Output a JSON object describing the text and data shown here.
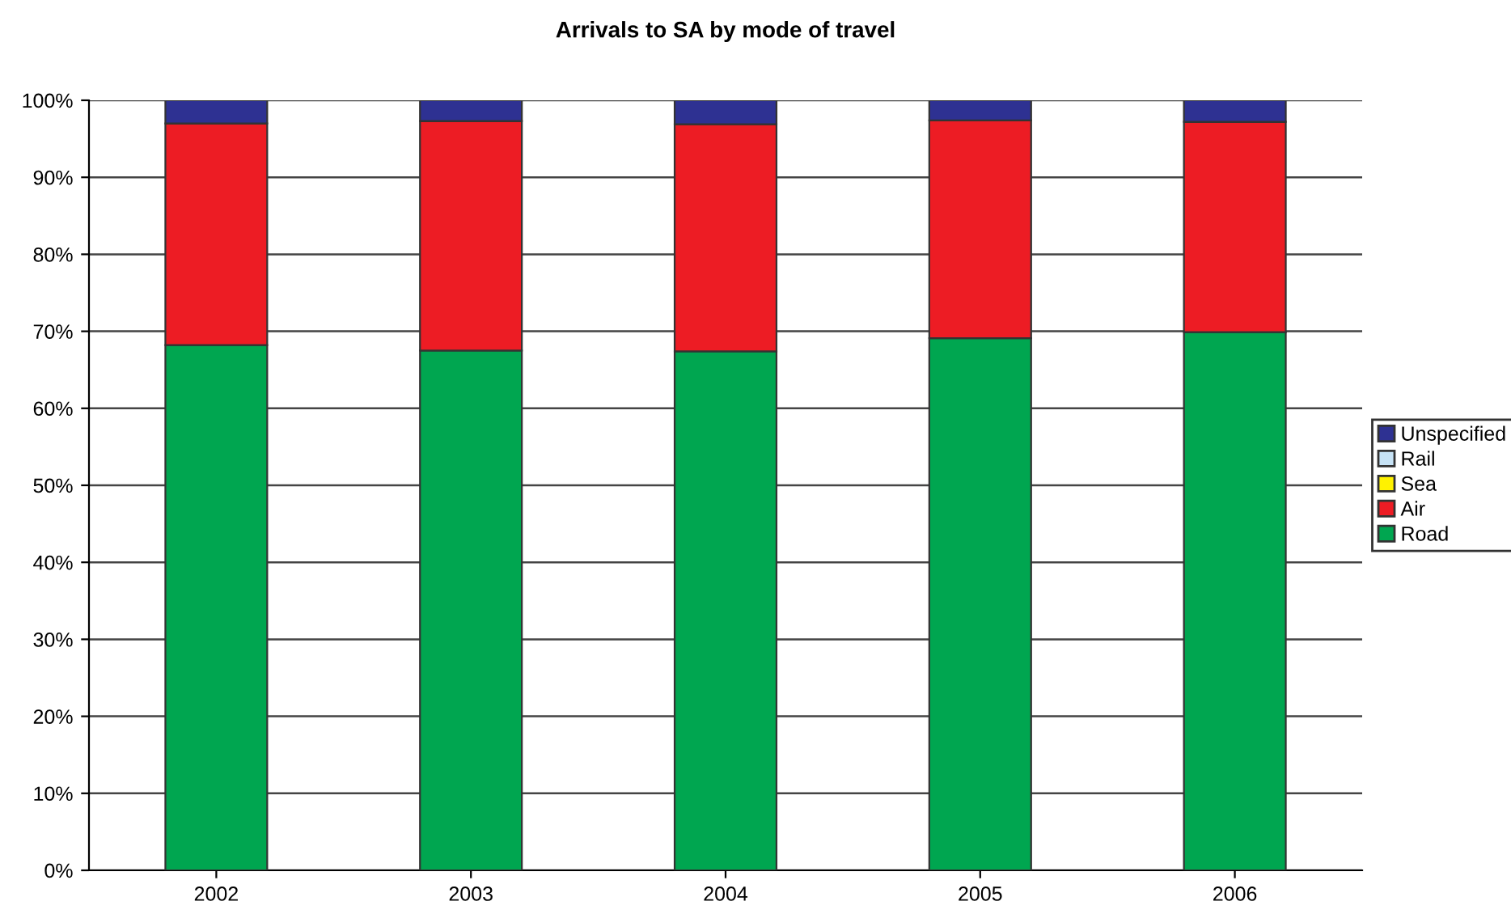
{
  "chart_data": {
    "type": "bar",
    "stacked": true,
    "title": "Arrivals to SA by mode of travel",
    "categories": [
      "2002",
      "2003",
      "2004",
      "2005",
      "2006"
    ],
    "series": [
      {
        "name": "Road",
        "color": "#00a650",
        "values": [
          68.2,
          67.5,
          67.4,
          69.1,
          69.9
        ]
      },
      {
        "name": "Air",
        "color": "#ed1c24",
        "values": [
          28.8,
          29.8,
          29.5,
          28.3,
          27.3
        ]
      },
      {
        "name": "Sea",
        "color": "#fff200",
        "values": [
          null,
          null,
          null,
          null,
          null
        ]
      },
      {
        "name": "Rail",
        "color": "#c6e2f5",
        "values": [
          null,
          null,
          null,
          null,
          null
        ]
      },
      {
        "name": "Unspecified",
        "color": "#2e3192",
        "values": [
          3.0,
          2.7,
          3.1,
          2.6,
          2.8
        ]
      }
    ],
    "ylim": [
      0,
      100
    ],
    "yticks": [
      {
        "value": 0,
        "label": "0%"
      },
      {
        "value": 10,
        "label": "10%"
      },
      {
        "value": 20,
        "label": "20%"
      },
      {
        "value": 30,
        "label": "30%"
      },
      {
        "value": 40,
        "label": "40%"
      },
      {
        "value": 50,
        "label": "50%"
      },
      {
        "value": 60,
        "label": "60%"
      },
      {
        "value": 70,
        "label": "70%"
      },
      {
        "value": 80,
        "label": "80%"
      },
      {
        "value": 90,
        "label": "90%"
      },
      {
        "value": 100,
        "label": "100%"
      }
    ],
    "grid": "y",
    "legend": "right"
  }
}
